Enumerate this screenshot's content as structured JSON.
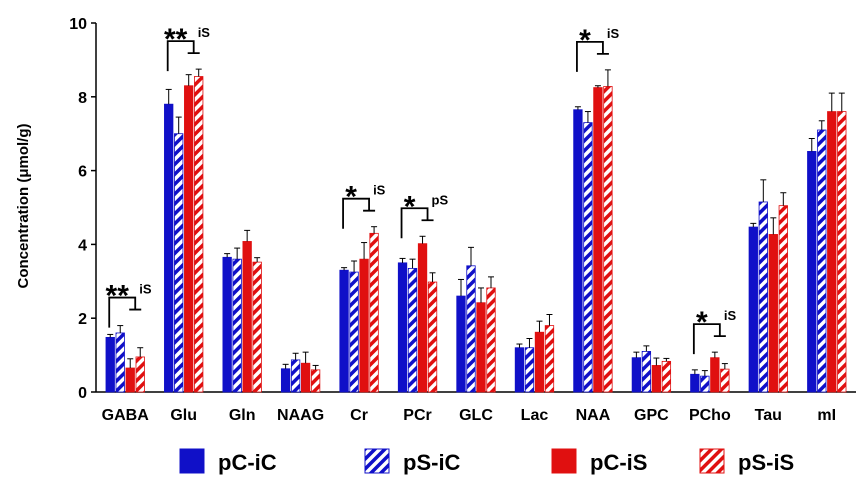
{
  "chart_data": {
    "type": "bar",
    "ylabel": "Concentration (μmol/g)",
    "xlabel": "",
    "title": "",
    "ylim": [
      0,
      10
    ],
    "yticks": [
      0,
      2,
      4,
      6,
      8,
      10
    ],
    "legend_position": "bottom",
    "categories": [
      "GABA",
      "Glu",
      "Gln",
      "NAAG",
      "Cr",
      "PCr",
      "GLC",
      "Lac",
      "NAA",
      "GPC",
      "PCho",
      "Tau",
      "mI"
    ],
    "series": [
      {
        "name": "pC-iC",
        "color": "#1010C8",
        "pattern": "solid",
        "values": [
          1.48,
          7.8,
          3.65,
          0.63,
          3.3,
          3.5,
          2.6,
          1.2,
          7.65,
          0.93,
          0.48,
          4.47,
          6.52
        ],
        "errors": [
          0.08,
          0.4,
          0.1,
          0.12,
          0.07,
          0.12,
          0.45,
          0.1,
          0.08,
          0.15,
          0.12,
          0.1,
          0.35
        ]
      },
      {
        "name": "pS-iC",
        "color": "#1010C8",
        "pattern": "hatched",
        "values": [
          1.6,
          7.0,
          3.6,
          0.87,
          3.25,
          3.35,
          3.42,
          1.2,
          7.3,
          1.1,
          0.43,
          5.15,
          7.1
        ],
        "errors": [
          0.2,
          0.45,
          0.3,
          0.18,
          0.3,
          0.25,
          0.5,
          0.25,
          0.3,
          0.15,
          0.15,
          0.6,
          0.25
        ]
      },
      {
        "name": "pC-iS",
        "color": "#E01010",
        "pattern": "solid",
        "values": [
          0.65,
          8.3,
          4.08,
          0.78,
          3.6,
          4.02,
          2.42,
          1.62,
          8.25,
          0.72,
          0.93,
          4.27,
          7.6
        ]
      },
      {
        "name": "pS-iS",
        "color": "#E01010",
        "pattern": "hatched",
        "values": [
          0.95,
          8.55,
          3.52,
          0.6,
          4.3,
          2.98,
          2.82,
          1.8,
          8.28,
          0.83,
          0.62,
          5.05,
          7.6
        ]
      }
    ],
    "errors_red": [
      [
        0.25,
        0.3,
        0.3,
        0.3,
        0.45,
        0.2,
        0.4,
        0.3,
        0.05,
        0.2,
        0.15,
        0.45,
        0.5
      ],
      [
        0.25,
        0.2,
        0.12,
        0.12,
        0.18,
        0.25,
        0.3,
        0.3,
        0.45,
        0.08,
        0.15,
        0.35,
        0.5
      ]
    ],
    "annotations": [
      {
        "category": "GABA",
        "stars": "**",
        "label": "iS"
      },
      {
        "category": "Glu",
        "stars": "**",
        "label": "iS"
      },
      {
        "category": "Cr",
        "stars": "*",
        "label": "iS"
      },
      {
        "category": "PCr",
        "stars": "*",
        "label": "pS"
      },
      {
        "category": "NAA",
        "stars": "*",
        "label": "iS"
      },
      {
        "category": "PCho",
        "stars": "*",
        "label": "iS"
      }
    ]
  }
}
